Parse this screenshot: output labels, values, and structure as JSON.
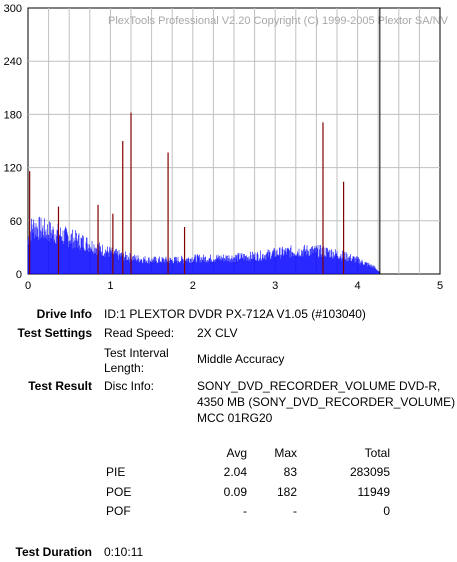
{
  "chart_data": {
    "type": "bar",
    "watermark": "PlexTools Professional V2.20 Copyright (C) 1999-2005 Plextor SA/NV",
    "xlim": [
      0,
      5
    ],
    "ylim": [
      0,
      300
    ],
    "x_ticks": [
      "0",
      "1",
      "2",
      "3",
      "4",
      "5"
    ],
    "y_ticks": [
      "0",
      "60",
      "120",
      "180",
      "240",
      "300"
    ],
    "grid": true,
    "end_marker_x": 4.27,
    "series": [
      {
        "color": "#0000ff",
        "note_points": "PIE envelope (approx)",
        "points": [
          [
            0.0,
            40
          ],
          [
            0.05,
            55
          ],
          [
            0.15,
            52
          ],
          [
            0.3,
            48
          ],
          [
            0.5,
            42
          ],
          [
            0.7,
            36
          ],
          [
            0.9,
            28
          ],
          [
            1.1,
            22
          ],
          [
            1.3,
            18
          ],
          [
            1.5,
            16
          ],
          [
            1.8,
            16
          ],
          [
            2.0,
            18
          ],
          [
            2.2,
            18
          ],
          [
            2.5,
            19
          ],
          [
            2.8,
            21
          ],
          [
            3.0,
            24
          ],
          [
            3.2,
            26
          ],
          [
            3.4,
            27
          ],
          [
            3.6,
            26
          ],
          [
            3.8,
            22
          ],
          [
            4.0,
            16
          ],
          [
            4.1,
            12
          ],
          [
            4.2,
            8
          ],
          [
            4.27,
            2
          ]
        ]
      },
      {
        "color": "#800000",
        "points": [
          [
            0.02,
            116
          ],
          [
            0.37,
            76
          ],
          [
            0.85,
            78
          ],
          [
            1.03,
            68
          ],
          [
            1.15,
            150
          ],
          [
            1.25,
            182
          ],
          [
            1.7,
            137
          ],
          [
            1.9,
            53
          ],
          [
            3.58,
            171
          ],
          [
            3.83,
            104
          ]
        ]
      }
    ]
  },
  "drive_info": {
    "label": "Drive Info",
    "value": "ID:1 PLEXTOR DVDR PX-712A V1.05 (#103040)"
  },
  "test_settings": {
    "label": "Test Settings",
    "read_speed_label": "Read Speed:",
    "read_speed_value": "2X CLV",
    "interval_label_1": "Test Interval",
    "interval_label_2": "Length:",
    "interval_value": "Middle Accuracy"
  },
  "test_result": {
    "label": "Test Result",
    "disc_info_label": "Disc Info:",
    "disc_info_lines": [
      "SONY_DVD_RECORDER_VOLUME DVD-R,",
      "4350 MB (SONY_DVD_RECORDER_VOLUME)",
      "MCC 01RG20"
    ]
  },
  "stats": {
    "headers": [
      "Avg",
      "Max",
      "Total"
    ],
    "rows": [
      {
        "name": "PIE",
        "avg": "2.04",
        "max": "83",
        "total": "283095"
      },
      {
        "name": "POE",
        "avg": "0.09",
        "max": "182",
        "total": "11949"
      },
      {
        "name": "POF",
        "avg": "-",
        "max": "-",
        "total": "0"
      }
    ]
  },
  "test_duration": {
    "label": "Test Duration",
    "value": "0:10:11"
  }
}
